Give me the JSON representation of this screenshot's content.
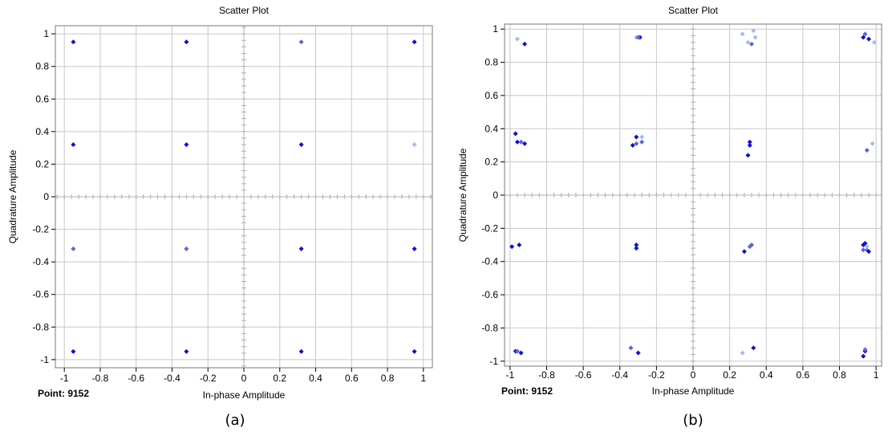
{
  "chart_data": [
    {
      "type": "scatter",
      "title": "Scatter Plot",
      "xlabel": "In-phase Amplitude",
      "ylabel": "Quadrature Amplitude",
      "xlim": [
        -1.05,
        1.05
      ],
      "ylim": [
        -1.05,
        1.05
      ],
      "x_ticks": [
        "-1",
        "-0.8",
        "-0.6",
        "-0.4",
        "-0.2",
        "0",
        "0.2",
        "0.4",
        "0.6",
        "0.8",
        "1"
      ],
      "y_ticks": [
        "1",
        "0.8",
        "0.6",
        "0.4",
        "0.2",
        "0",
        "-0.2",
        "-0.4",
        "-0.6",
        "-0.8",
        "-1"
      ],
      "grid": true,
      "status_text": "Point: 9152",
      "caption": "(a)",
      "points": [
        {
          "x": -0.95,
          "y": 0.95,
          "tone": "dark"
        },
        {
          "x": -0.32,
          "y": 0.95,
          "tone": "dark"
        },
        {
          "x": 0.32,
          "y": 0.95,
          "tone": "mid"
        },
        {
          "x": 0.95,
          "y": 0.95,
          "tone": "dark"
        },
        {
          "x": -0.95,
          "y": 0.32,
          "tone": "dark"
        },
        {
          "x": -0.32,
          "y": 0.32,
          "tone": "dark"
        },
        {
          "x": 0.32,
          "y": 0.32,
          "tone": "dark"
        },
        {
          "x": 0.95,
          "y": 0.32,
          "tone": "light"
        },
        {
          "x": -0.95,
          "y": -0.32,
          "tone": "mid"
        },
        {
          "x": -0.32,
          "y": -0.32,
          "tone": "mid"
        },
        {
          "x": 0.32,
          "y": -0.32,
          "tone": "dark"
        },
        {
          "x": 0.95,
          "y": -0.32,
          "tone": "dark"
        },
        {
          "x": -0.95,
          "y": -0.95,
          "tone": "dark"
        },
        {
          "x": -0.32,
          "y": -0.95,
          "tone": "dark"
        },
        {
          "x": 0.32,
          "y": -0.95,
          "tone": "dark"
        },
        {
          "x": 0.95,
          "y": -0.95,
          "tone": "dark"
        }
      ]
    },
    {
      "type": "scatter",
      "title": "Scatter Plot",
      "xlabel": "In-phase Amplitude",
      "ylabel": "Quadrature Amplitude",
      "xlim": [
        -1.03,
        1.03
      ],
      "ylim": [
        -1.03,
        1.03
      ],
      "x_ticks": [
        "-1",
        "-0.8",
        "-0.6",
        "-0.4",
        "-0.2",
        "0",
        "0.2",
        "0.4",
        "0.6",
        "0.8",
        "1"
      ],
      "y_ticks": [
        "1",
        "0.8",
        "0.6",
        "0.4",
        "0.2",
        "0",
        "-0.2",
        "-0.4",
        "-0.6",
        "-0.8",
        "-1"
      ],
      "grid": true,
      "status_text": "Point: 9152",
      "caption": "(b)",
      "points": [
        {
          "x": -0.96,
          "y": 0.94,
          "tone": "light"
        },
        {
          "x": -0.92,
          "y": 0.91,
          "tone": "dark"
        },
        {
          "x": -0.31,
          "y": 0.95,
          "tone": "light"
        },
        {
          "x": -0.29,
          "y": 0.95,
          "tone": "dark"
        },
        {
          "x": -0.3,
          "y": 0.95,
          "tone": "mid"
        },
        {
          "x": 0.27,
          "y": 0.97,
          "tone": "light"
        },
        {
          "x": 0.33,
          "y": 0.99,
          "tone": "light"
        },
        {
          "x": 0.34,
          "y": 0.95,
          "tone": "light"
        },
        {
          "x": 0.3,
          "y": 0.92,
          "tone": "light"
        },
        {
          "x": 0.32,
          "y": 0.91,
          "tone": "mid"
        },
        {
          "x": 0.93,
          "y": 0.95,
          "tone": "dark"
        },
        {
          "x": 0.94,
          "y": 0.97,
          "tone": "mid"
        },
        {
          "x": 0.96,
          "y": 0.94,
          "tone": "dark"
        },
        {
          "x": 0.99,
          "y": 0.92,
          "tone": "light"
        },
        {
          "x": -0.97,
          "y": 0.37,
          "tone": "dark"
        },
        {
          "x": -0.96,
          "y": 0.32,
          "tone": "dark"
        },
        {
          "x": -0.94,
          "y": 0.32,
          "tone": "mid"
        },
        {
          "x": -0.92,
          "y": 0.31,
          "tone": "dark"
        },
        {
          "x": -0.33,
          "y": 0.3,
          "tone": "dark"
        },
        {
          "x": -0.31,
          "y": 0.35,
          "tone": "dark"
        },
        {
          "x": -0.28,
          "y": 0.35,
          "tone": "light"
        },
        {
          "x": -0.28,
          "y": 0.32,
          "tone": "mid"
        },
        {
          "x": -0.31,
          "y": 0.31,
          "tone": "mid"
        },
        {
          "x": 0.31,
          "y": 0.32,
          "tone": "dark"
        },
        {
          "x": 0.31,
          "y": 0.3,
          "tone": "dark"
        },
        {
          "x": 0.3,
          "y": 0.24,
          "tone": "dark"
        },
        {
          "x": 0.95,
          "y": 0.27,
          "tone": "mid"
        },
        {
          "x": 0.98,
          "y": 0.31,
          "tone": "light"
        },
        {
          "x": -0.99,
          "y": -0.31,
          "tone": "dark"
        },
        {
          "x": -0.95,
          "y": -0.3,
          "tone": "dark"
        },
        {
          "x": -0.31,
          "y": -0.3,
          "tone": "dark"
        },
        {
          "x": -0.31,
          "y": -0.32,
          "tone": "dark"
        },
        {
          "x": 0.28,
          "y": -0.34,
          "tone": "dark"
        },
        {
          "x": 0.32,
          "y": -0.3,
          "tone": "mid"
        },
        {
          "x": 0.31,
          "y": -0.31,
          "tone": "mid"
        },
        {
          "x": 0.93,
          "y": -0.3,
          "tone": "dark"
        },
        {
          "x": 0.94,
          "y": -0.29,
          "tone": "dark"
        },
        {
          "x": 0.93,
          "y": -0.33,
          "tone": "mid"
        },
        {
          "x": 0.95,
          "y": -0.33,
          "tone": "mid"
        },
        {
          "x": 0.96,
          "y": -0.34,
          "tone": "dark"
        },
        {
          "x": 0.95,
          "y": -0.31,
          "tone": "light"
        },
        {
          "x": -0.97,
          "y": -0.94,
          "tone": "dark"
        },
        {
          "x": -0.94,
          "y": -0.95,
          "tone": "dark"
        },
        {
          "x": -0.96,
          "y": -0.94,
          "tone": "mid"
        },
        {
          "x": -0.34,
          "y": -0.92,
          "tone": "mid"
        },
        {
          "x": -0.3,
          "y": -0.95,
          "tone": "dark"
        },
        {
          "x": 0.27,
          "y": -0.95,
          "tone": "light"
        },
        {
          "x": 0.33,
          "y": -0.92,
          "tone": "dark"
        },
        {
          "x": 0.93,
          "y": -0.97,
          "tone": "dark"
        },
        {
          "x": 0.94,
          "y": -0.94,
          "tone": "dark"
        },
        {
          "x": 0.94,
          "y": -0.93,
          "tone": "mid"
        }
      ]
    }
  ],
  "colors": {
    "dark": "#0a10d8",
    "mid": "#5a66d6",
    "light": "#a9b9ea",
    "grid": "#c8c8c8",
    "axis_frame": "#7a7a7a",
    "center_ticks": "#b0b0b0"
  }
}
